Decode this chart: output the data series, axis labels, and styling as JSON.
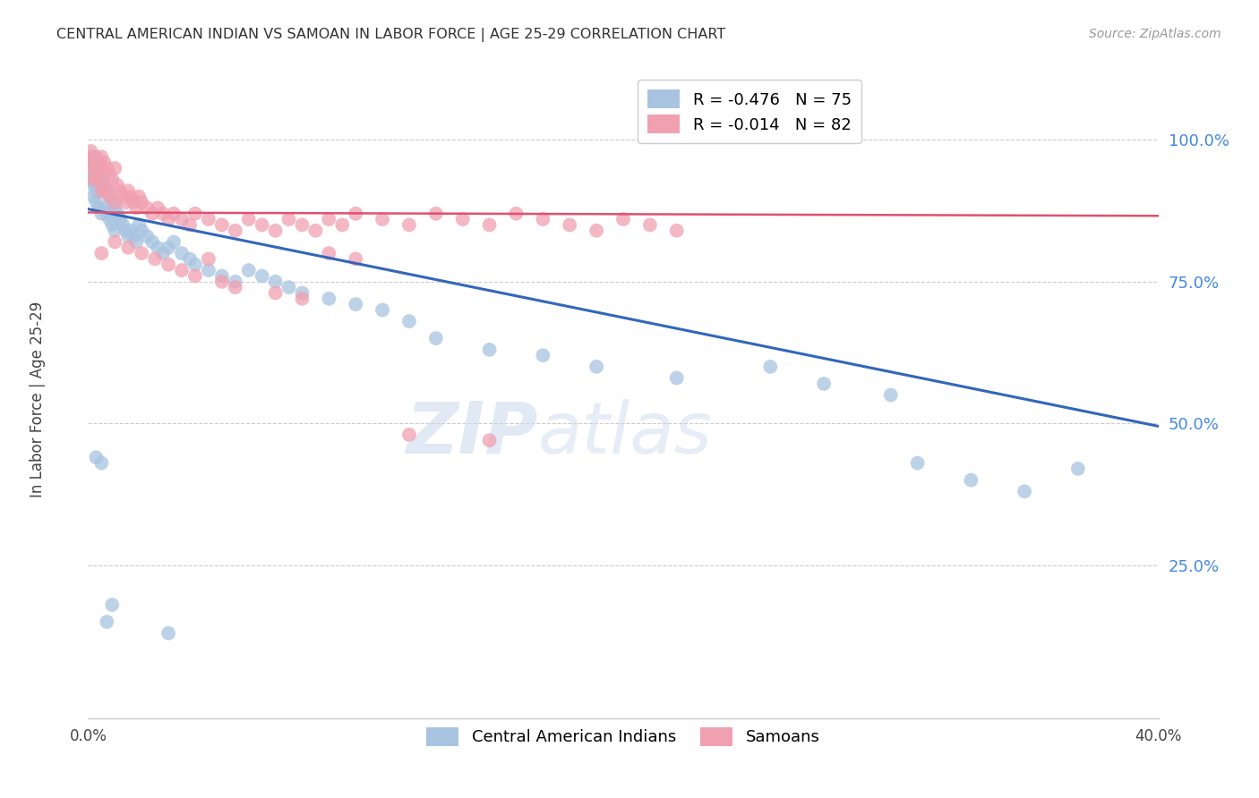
{
  "title": "CENTRAL AMERICAN INDIAN VS SAMOAN IN LABOR FORCE | AGE 25-29 CORRELATION CHART",
  "source_text": "Source: ZipAtlas.com",
  "ylabel": "In Labor Force | Age 25-29",
  "ytick_labels": [
    "100.0%",
    "75.0%",
    "50.0%",
    "25.0%"
  ],
  "ytick_values": [
    1.0,
    0.75,
    0.5,
    0.25
  ],
  "xlim": [
    0.0,
    0.4
  ],
  "ylim": [
    -0.02,
    1.12
  ],
  "blue_R": -0.476,
  "blue_N": 75,
  "pink_R": -0.014,
  "pink_N": 82,
  "blue_color": "#a8c4e0",
  "pink_color": "#f0a0b0",
  "blue_line_color": "#3366bb",
  "pink_line_color": "#e05070",
  "watermark_part1": "ZIP",
  "watermark_part2": "atlas",
  "blue_label": "Central American Indians",
  "pink_label": "Samoans",
  "blue_scatter_x": [
    0.001,
    0.001,
    0.001,
    0.002,
    0.002,
    0.002,
    0.002,
    0.003,
    0.003,
    0.003,
    0.003,
    0.004,
    0.004,
    0.004,
    0.005,
    0.005,
    0.005,
    0.006,
    0.006,
    0.007,
    0.007,
    0.008,
    0.008,
    0.009,
    0.009,
    0.01,
    0.01,
    0.011,
    0.012,
    0.013,
    0.014,
    0.015,
    0.016,
    0.017,
    0.018,
    0.019,
    0.02,
    0.022,
    0.024,
    0.026,
    0.028,
    0.03,
    0.032,
    0.035,
    0.038,
    0.04,
    0.045,
    0.05,
    0.055,
    0.06,
    0.065,
    0.07,
    0.075,
    0.08,
    0.09,
    0.1,
    0.11,
    0.12,
    0.13,
    0.15,
    0.17,
    0.19,
    0.22,
    0.255,
    0.275,
    0.3,
    0.31,
    0.33,
    0.35,
    0.37,
    0.003,
    0.005,
    0.007,
    0.009,
    0.03
  ],
  "blue_scatter_y": [
    0.97,
    0.95,
    0.93,
    0.96,
    0.94,
    0.92,
    0.9,
    0.95,
    0.93,
    0.91,
    0.89,
    0.94,
    0.92,
    0.88,
    0.93,
    0.91,
    0.87,
    0.92,
    0.88,
    0.91,
    0.87,
    0.9,
    0.86,
    0.89,
    0.85,
    0.88,
    0.84,
    0.87,
    0.86,
    0.85,
    0.84,
    0.83,
    0.84,
    0.83,
    0.82,
    0.85,
    0.84,
    0.83,
    0.82,
    0.81,
    0.8,
    0.81,
    0.82,
    0.8,
    0.79,
    0.78,
    0.77,
    0.76,
    0.75,
    0.77,
    0.76,
    0.75,
    0.74,
    0.73,
    0.72,
    0.71,
    0.7,
    0.68,
    0.65,
    0.63,
    0.62,
    0.6,
    0.58,
    0.6,
    0.57,
    0.55,
    0.43,
    0.4,
    0.38,
    0.42,
    0.44,
    0.43,
    0.15,
    0.18,
    0.13
  ],
  "pink_scatter_x": [
    0.001,
    0.001,
    0.002,
    0.002,
    0.002,
    0.003,
    0.003,
    0.003,
    0.004,
    0.004,
    0.005,
    0.005,
    0.005,
    0.006,
    0.006,
    0.007,
    0.007,
    0.008,
    0.008,
    0.009,
    0.01,
    0.01,
    0.011,
    0.012,
    0.013,
    0.014,
    0.015,
    0.016,
    0.017,
    0.018,
    0.019,
    0.02,
    0.022,
    0.024,
    0.026,
    0.028,
    0.03,
    0.032,
    0.035,
    0.038,
    0.04,
    0.045,
    0.05,
    0.055,
    0.06,
    0.065,
    0.07,
    0.075,
    0.08,
    0.085,
    0.09,
    0.095,
    0.1,
    0.11,
    0.12,
    0.13,
    0.14,
    0.15,
    0.16,
    0.17,
    0.18,
    0.19,
    0.2,
    0.21,
    0.22,
    0.005,
    0.01,
    0.015,
    0.02,
    0.025,
    0.03,
    0.035,
    0.04,
    0.045,
    0.05,
    0.055,
    0.07,
    0.08,
    0.09,
    0.1,
    0.12,
    0.15
  ],
  "pink_scatter_y": [
    0.98,
    0.96,
    0.97,
    0.95,
    0.93,
    0.97,
    0.95,
    0.93,
    0.96,
    0.94,
    0.97,
    0.95,
    0.91,
    0.96,
    0.92,
    0.95,
    0.91,
    0.94,
    0.9,
    0.93,
    0.95,
    0.89,
    0.92,
    0.91,
    0.9,
    0.89,
    0.91,
    0.9,
    0.89,
    0.88,
    0.9,
    0.89,
    0.88,
    0.87,
    0.88,
    0.87,
    0.86,
    0.87,
    0.86,
    0.85,
    0.87,
    0.86,
    0.85,
    0.84,
    0.86,
    0.85,
    0.84,
    0.86,
    0.85,
    0.84,
    0.86,
    0.85,
    0.87,
    0.86,
    0.85,
    0.87,
    0.86,
    0.85,
    0.87,
    0.86,
    0.85,
    0.84,
    0.86,
    0.85,
    0.84,
    0.8,
    0.82,
    0.81,
    0.8,
    0.79,
    0.78,
    0.77,
    0.76,
    0.79,
    0.75,
    0.74,
    0.73,
    0.72,
    0.8,
    0.79,
    0.48,
    0.47
  ],
  "blue_line_x": [
    0.0,
    0.4
  ],
  "blue_line_y": [
    0.878,
    0.495
  ],
  "pink_line_x": [
    0.0,
    0.4
  ],
  "pink_line_y": [
    0.872,
    0.866
  ]
}
